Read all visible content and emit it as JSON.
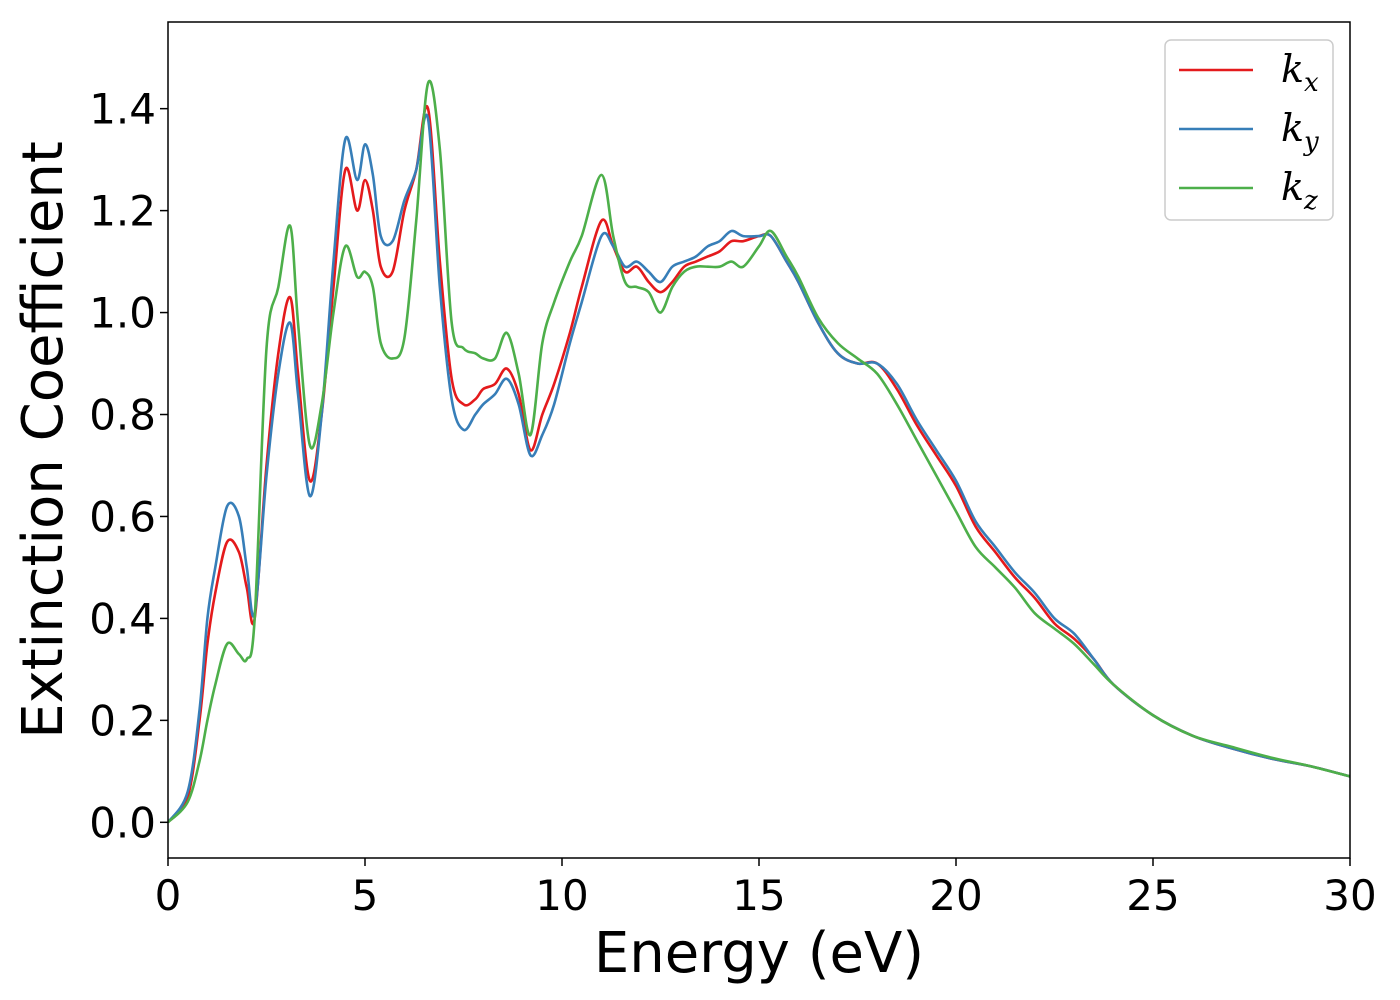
{
  "chart_data": {
    "type": "line",
    "title": "",
    "xlabel": "Energy (eV)",
    "ylabel": "Extinction Coefficient",
    "xlim": [
      0,
      30
    ],
    "ylim": [
      -0.07,
      1.57
    ],
    "xticks": [
      "0",
      "5",
      "10",
      "15",
      "20",
      "25",
      "30"
    ],
    "yticks": [
      "0.0",
      "0.2",
      "0.4",
      "0.6",
      "0.8",
      "1.0",
      "1.2",
      "1.4"
    ],
    "grid": false,
    "legend_position": "top-right",
    "series": [
      {
        "name": "k",
        "subscript": "x",
        "color": "#e41a1c",
        "x": [
          0,
          0.5,
          0.8,
          1.0,
          1.2,
          1.5,
          1.8,
          2.0,
          2.2,
          2.5,
          2.8,
          3.1,
          3.3,
          3.6,
          3.9,
          4.2,
          4.5,
          4.8,
          5.0,
          5.2,
          5.4,
          5.7,
          6.0,
          6.3,
          6.6,
          6.9,
          7.2,
          7.5,
          7.8,
          8.0,
          8.3,
          8.6,
          8.9,
          9.2,
          9.5,
          9.8,
          10.2,
          10.5,
          11.0,
          11.3,
          11.6,
          11.9,
          12.2,
          12.5,
          12.8,
          13.1,
          13.4,
          13.7,
          14.0,
          14.3,
          14.6,
          15.0,
          15.3,
          15.7,
          16.0,
          16.5,
          17.0,
          17.5,
          18.0,
          18.5,
          19.0,
          19.5,
          20.0,
          20.5,
          21.0,
          21.5,
          22.0,
          22.5,
          23.0,
          23.5,
          24.0,
          25.0,
          26.0,
          27.0,
          28.0,
          29.0,
          30.0
        ],
        "y": [
          0.0,
          0.05,
          0.2,
          0.35,
          0.45,
          0.55,
          0.53,
          0.46,
          0.4,
          0.7,
          0.92,
          1.03,
          0.88,
          0.67,
          0.8,
          1.05,
          1.28,
          1.2,
          1.26,
          1.2,
          1.09,
          1.08,
          1.2,
          1.28,
          1.4,
          1.1,
          0.87,
          0.82,
          0.83,
          0.85,
          0.86,
          0.89,
          0.84,
          0.73,
          0.8,
          0.86,
          0.96,
          1.05,
          1.18,
          1.13,
          1.08,
          1.09,
          1.06,
          1.04,
          1.06,
          1.09,
          1.1,
          1.11,
          1.12,
          1.14,
          1.14,
          1.15,
          1.15,
          1.1,
          1.06,
          0.98,
          0.92,
          0.9,
          0.9,
          0.85,
          0.78,
          0.72,
          0.66,
          0.58,
          0.53,
          0.48,
          0.44,
          0.39,
          0.36,
          0.32,
          0.27,
          0.21,
          0.17,
          0.145,
          0.125,
          0.11,
          0.09
        ]
      },
      {
        "name": "k",
        "subscript": "y",
        "color": "#377eb8",
        "x": [
          0,
          0.5,
          0.8,
          1.0,
          1.2,
          1.5,
          1.8,
          2.0,
          2.2,
          2.5,
          2.8,
          3.1,
          3.3,
          3.6,
          3.9,
          4.2,
          4.5,
          4.8,
          5.0,
          5.2,
          5.4,
          5.7,
          6.0,
          6.3,
          6.6,
          6.9,
          7.2,
          7.5,
          7.8,
          8.0,
          8.3,
          8.6,
          8.9,
          9.2,
          9.5,
          9.8,
          10.2,
          10.5,
          11.0,
          11.3,
          11.6,
          11.9,
          12.2,
          12.5,
          12.8,
          13.1,
          13.4,
          13.7,
          14.0,
          14.3,
          14.6,
          15.0,
          15.3,
          15.7,
          16.0,
          16.5,
          17.0,
          17.5,
          18.0,
          18.5,
          19.0,
          19.5,
          20.0,
          20.5,
          21.0,
          21.5,
          22.0,
          22.5,
          23.0,
          23.5,
          24.0,
          25.0,
          26.0,
          27.0,
          28.0,
          29.0,
          30.0
        ],
        "y": [
          0.0,
          0.06,
          0.22,
          0.4,
          0.5,
          0.62,
          0.6,
          0.5,
          0.41,
          0.68,
          0.88,
          0.98,
          0.84,
          0.64,
          0.8,
          1.1,
          1.34,
          1.26,
          1.33,
          1.27,
          1.15,
          1.14,
          1.22,
          1.28,
          1.38,
          1.05,
          0.83,
          0.77,
          0.8,
          0.82,
          0.84,
          0.87,
          0.82,
          0.72,
          0.76,
          0.82,
          0.94,
          1.02,
          1.15,
          1.13,
          1.09,
          1.1,
          1.08,
          1.06,
          1.09,
          1.1,
          1.11,
          1.13,
          1.14,
          1.16,
          1.15,
          1.15,
          1.15,
          1.1,
          1.06,
          0.98,
          0.92,
          0.9,
          0.9,
          0.86,
          0.79,
          0.73,
          0.67,
          0.59,
          0.54,
          0.49,
          0.45,
          0.4,
          0.37,
          0.32,
          0.27,
          0.21,
          0.17,
          0.145,
          0.125,
          0.11,
          0.09
        ]
      },
      {
        "name": "k",
        "subscript": "z",
        "color": "#4daf4a",
        "x": [
          0,
          0.5,
          0.8,
          1.0,
          1.2,
          1.5,
          1.8,
          2.0,
          2.2,
          2.5,
          2.8,
          3.1,
          3.3,
          3.6,
          3.9,
          4.2,
          4.5,
          4.8,
          5.0,
          5.2,
          5.4,
          5.7,
          6.0,
          6.3,
          6.6,
          6.9,
          7.2,
          7.5,
          7.8,
          8.0,
          8.3,
          8.6,
          8.9,
          9.2,
          9.5,
          9.8,
          10.2,
          10.5,
          11.0,
          11.3,
          11.6,
          11.9,
          12.2,
          12.5,
          12.8,
          13.1,
          13.4,
          13.7,
          14.0,
          14.3,
          14.6,
          15.0,
          15.3,
          15.7,
          16.0,
          16.5,
          17.0,
          17.5,
          18.0,
          18.5,
          19.0,
          19.5,
          20.0,
          20.5,
          21.0,
          21.5,
          22.0,
          22.5,
          23.0,
          23.5,
          24.0,
          25.0,
          26.0,
          27.0,
          28.0,
          29.0,
          30.0
        ],
        "y": [
          0.0,
          0.04,
          0.12,
          0.2,
          0.27,
          0.35,
          0.33,
          0.32,
          0.4,
          0.93,
          1.05,
          1.17,
          0.98,
          0.74,
          0.82,
          1.0,
          1.13,
          1.07,
          1.08,
          1.05,
          0.94,
          0.91,
          0.95,
          1.18,
          1.45,
          1.32,
          0.98,
          0.93,
          0.92,
          0.91,
          0.91,
          0.96,
          0.88,
          0.76,
          0.94,
          1.02,
          1.1,
          1.15,
          1.27,
          1.15,
          1.06,
          1.05,
          1.04,
          1.0,
          1.05,
          1.08,
          1.09,
          1.09,
          1.09,
          1.1,
          1.09,
          1.13,
          1.16,
          1.11,
          1.07,
          0.99,
          0.94,
          0.91,
          0.88,
          0.82,
          0.75,
          0.68,
          0.61,
          0.54,
          0.5,
          0.46,
          0.41,
          0.38,
          0.35,
          0.31,
          0.27,
          0.21,
          0.17,
          0.148,
          0.127,
          0.11,
          0.09
        ]
      }
    ]
  }
}
